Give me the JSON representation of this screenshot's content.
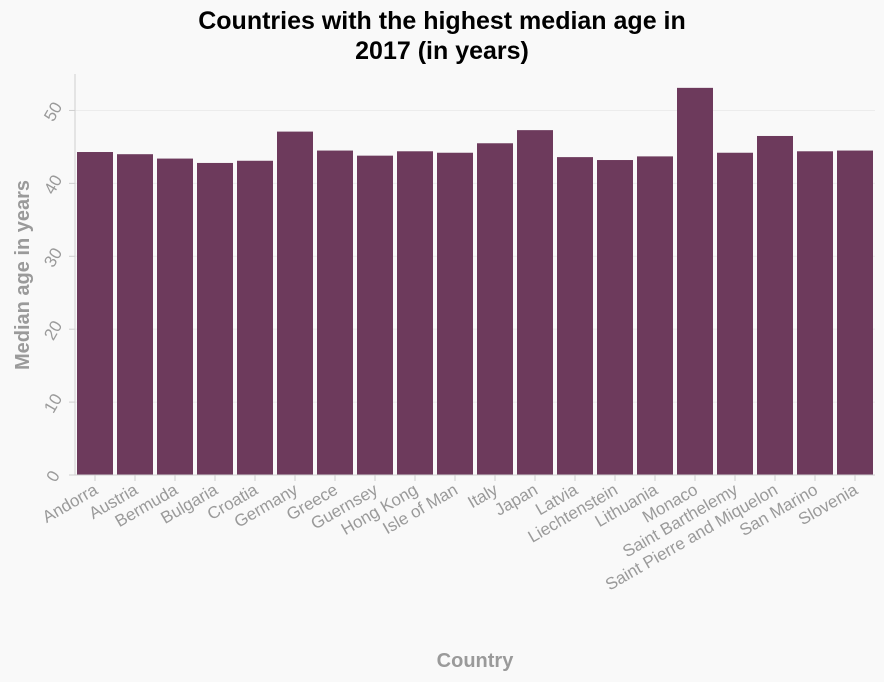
{
  "chart_data": {
    "type": "bar",
    "title_lines": [
      "Countries with the highest median age in",
      "2017 (in years)"
    ],
    "xlabel": "Country",
    "ylabel": "Median age in years",
    "categories": [
      "Andorra",
      "Austria",
      "Bermuda",
      "Bulgaria",
      "Croatia",
      "Germany",
      "Greece",
      "Guernsey",
      "Hong Kong",
      "Isle of Man",
      "Italy",
      "Japan",
      "Latvia",
      "Liechtenstein",
      "Lithuania",
      "Monaco",
      "Saint Barthelemy",
      "Saint Pierre and Miquelon",
      "San Marino",
      "Slovenia"
    ],
    "values": [
      44.3,
      44.0,
      43.4,
      42.8,
      43.1,
      47.1,
      44.5,
      43.8,
      44.4,
      44.2,
      45.5,
      47.3,
      43.6,
      43.2,
      43.7,
      53.1,
      44.2,
      46.5,
      44.4,
      44.5
    ],
    "ylim": [
      0,
      55
    ],
    "yticks": [
      0,
      10,
      20,
      30,
      40,
      50
    ],
    "grid": true,
    "bar_color": "#6d3a5c"
  }
}
